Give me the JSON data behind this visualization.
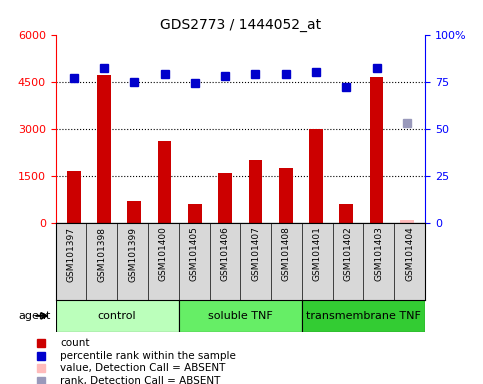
{
  "title": "GDS2773 / 1444052_at",
  "samples": [
    "GSM101397",
    "GSM101398",
    "GSM101399",
    "GSM101400",
    "GSM101405",
    "GSM101406",
    "GSM101407",
    "GSM101408",
    "GSM101401",
    "GSM101402",
    "GSM101403",
    "GSM101404"
  ],
  "counts": [
    1650,
    4700,
    700,
    2600,
    600,
    1600,
    2000,
    1750,
    3000,
    600,
    4650,
    80
  ],
  "percentile_ranks": [
    77,
    82,
    75,
    79,
    74,
    78,
    79,
    79,
    80,
    72,
    82,
    null
  ],
  "absent_value": 80,
  "absent_rank_value": 53,
  "absent_sample_index": 11,
  "groups": [
    {
      "label": "control",
      "start": 0,
      "end": 4,
      "color": "#bbffbb"
    },
    {
      "label": "soluble TNF",
      "start": 4,
      "end": 8,
      "color": "#66ee66"
    },
    {
      "label": "transmembrane TNF",
      "start": 8,
      "end": 12,
      "color": "#33cc33"
    }
  ],
  "bar_color": "#cc0000",
  "absent_bar_color": "#ffbbbb",
  "dot_color": "#0000cc",
  "absent_dot_color": "#9999bb",
  "ylim_left": [
    0,
    6000
  ],
  "ylim_right": [
    0,
    100
  ],
  "yticks_left": [
    0,
    1500,
    3000,
    4500,
    6000
  ],
  "yticks_right": [
    0,
    25,
    50,
    75,
    100
  ],
  "grid_values": [
    1500,
    3000,
    4500
  ],
  "legend_items": [
    {
      "color": "#cc0000",
      "label": "count",
      "marker": "s"
    },
    {
      "color": "#0000cc",
      "label": "percentile rank within the sample",
      "marker": "s"
    },
    {
      "color": "#ffbbbb",
      "label": "value, Detection Call = ABSENT",
      "marker": "s"
    },
    {
      "color": "#9999bb",
      "label": "rank, Detection Call = ABSENT",
      "marker": "s"
    }
  ],
  "bar_width": 0.45,
  "dot_size": 6,
  "sample_box_color": "#d8d8d8",
  "plot_bg": "#ffffff"
}
